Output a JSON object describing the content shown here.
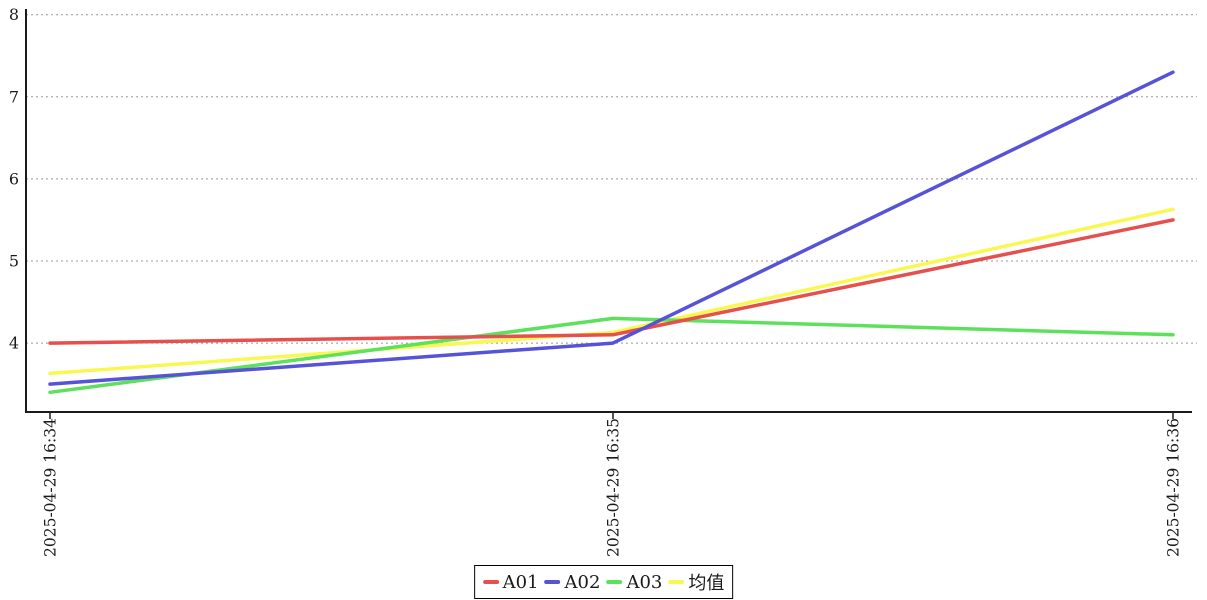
{
  "chart_data": {
    "type": "line",
    "title": "",
    "x_labels": [
      "2025-04-29 16:34",
      "2025-04-29 16:35",
      "2025-04-29 16:36"
    ],
    "series": [
      {
        "id": "a01",
        "name": "A01",
        "color": "#e5504e",
        "values": [
          4.0,
          4.1,
          5.5
        ]
      },
      {
        "id": "a02",
        "name": "A02",
        "color": "#5753d7",
        "values": [
          3.5,
          4.0,
          7.3
        ]
      },
      {
        "id": "a03",
        "name": "A03",
        "color": "#5de15d",
        "values": [
          3.4,
          4.3,
          4.1
        ]
      },
      {
        "id": "mean",
        "name": "均值",
        "color": "#f9f850",
        "values": [
          3.63,
          4.13,
          5.63
        ]
      }
    ],
    "draw_order": [
      "mean",
      "a03",
      "a01",
      "a02"
    ],
    "y_ticks": [
      4,
      5,
      6,
      7,
      8
    ],
    "ylim": [
      3.16,
      8.07
    ],
    "grid": "horizontal-dashed",
    "grid_color": "#999999",
    "axis_color": "#1a1a1a",
    "background": "#ffffff",
    "legend_position": "bottom-center",
    "x_label_rotation": -90
  }
}
